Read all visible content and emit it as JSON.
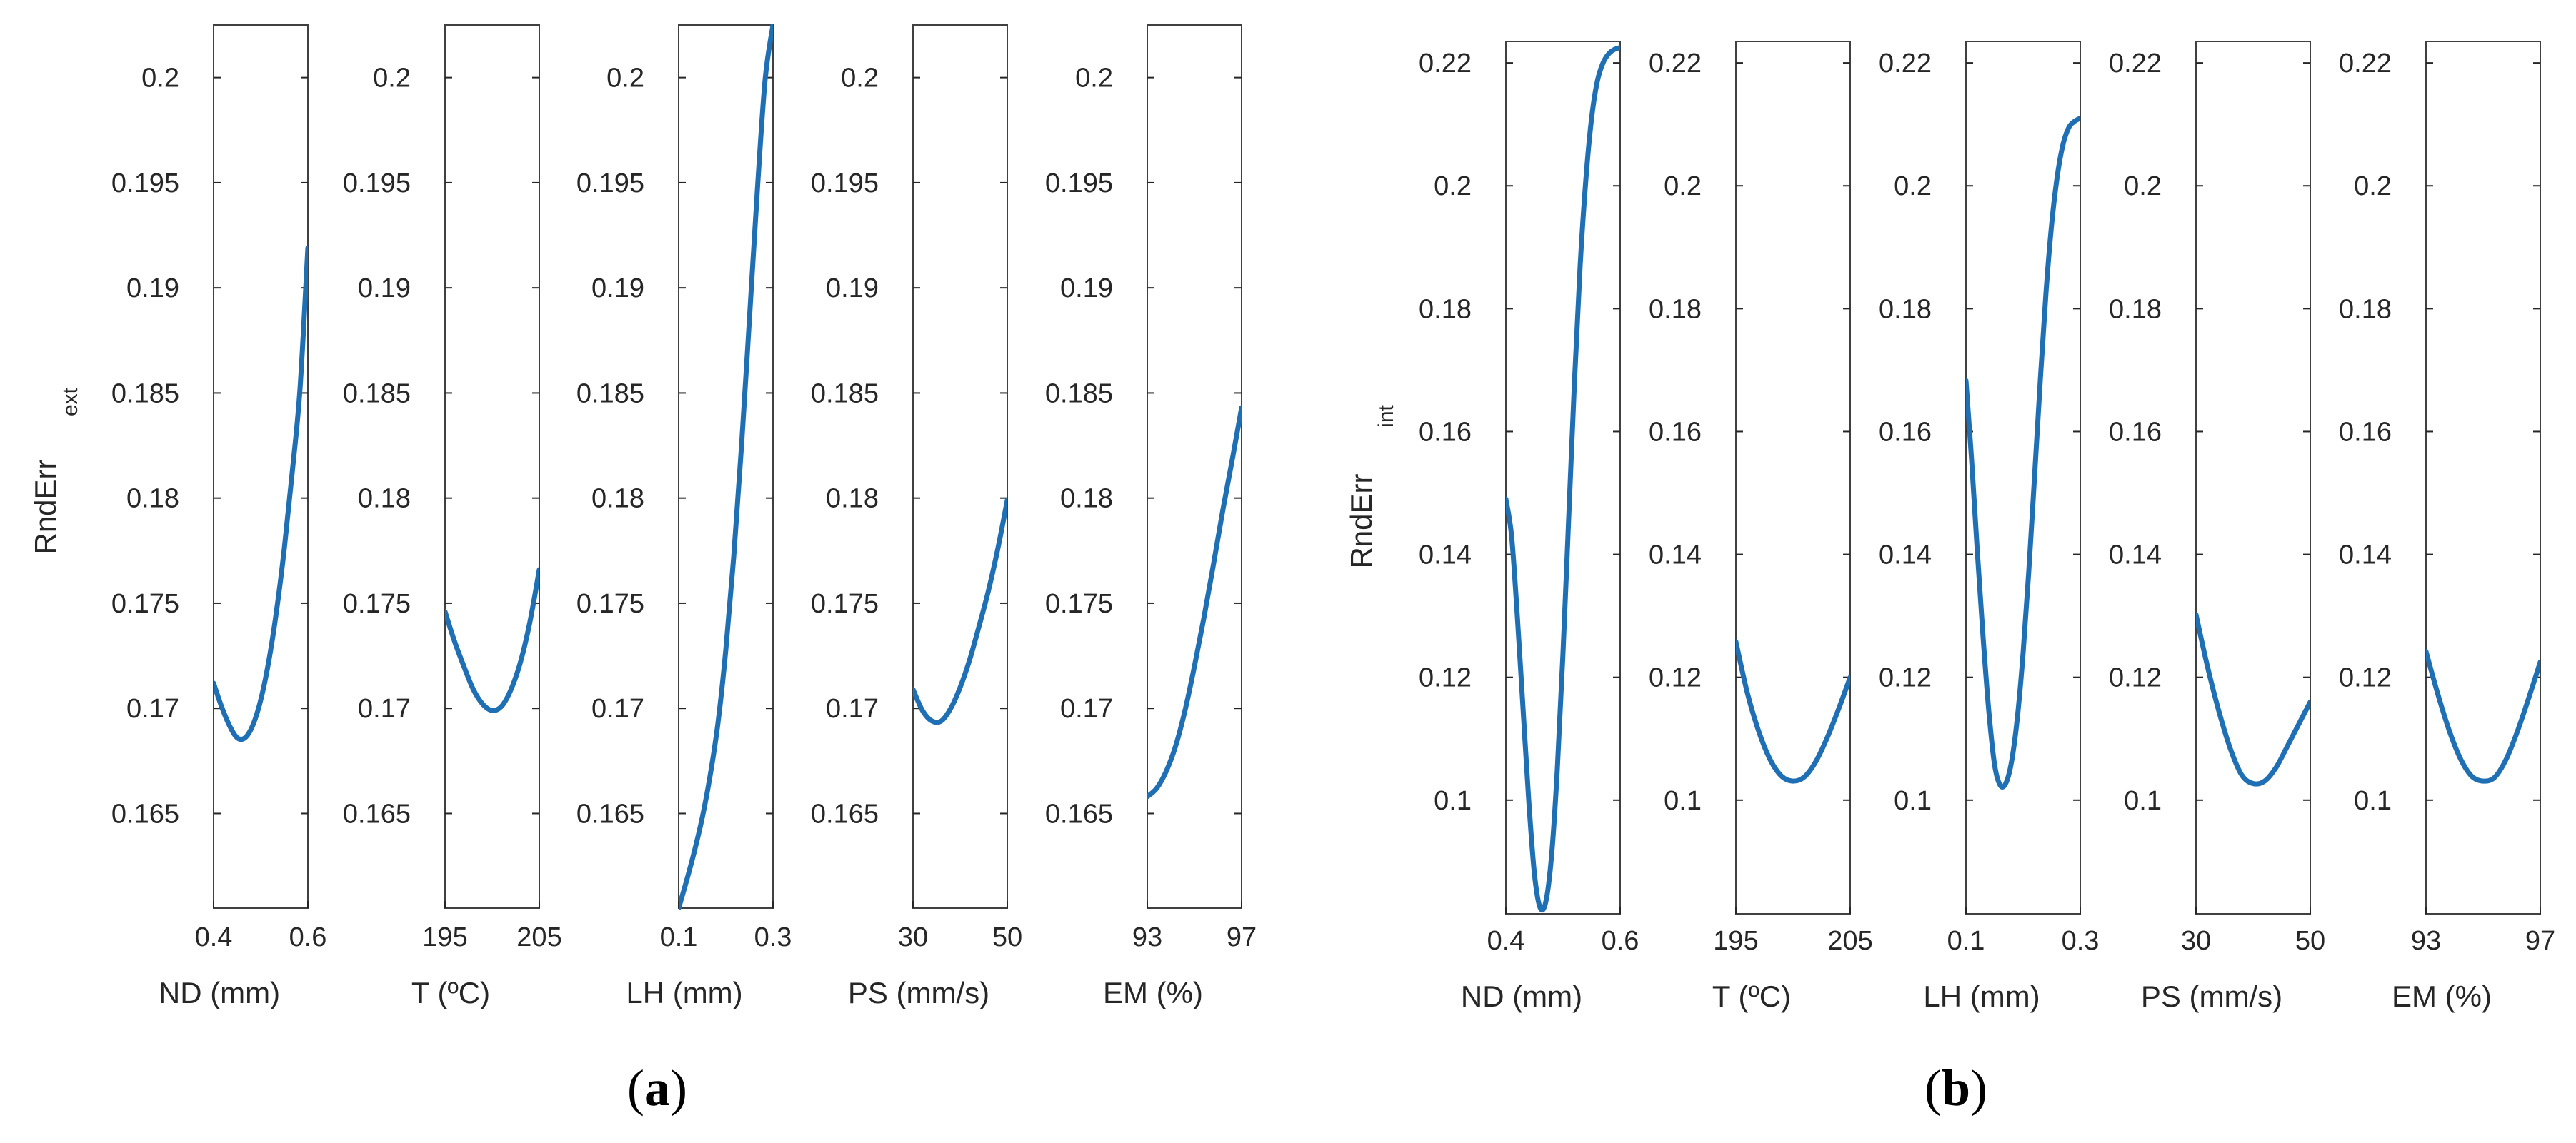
{
  "colors": {
    "line": "#1f6fb4",
    "axis": "#262626",
    "frame": "#404040"
  },
  "chart_data": [
    {
      "type": "line",
      "panel_label": "a",
      "ylabel": "RndErr",
      "ylabel_sub": "ext",
      "ylim": [
        0.1605,
        0.2025
      ],
      "yticks": [
        0.165,
        0.17,
        0.175,
        0.18,
        0.185,
        0.19,
        0.195,
        0.2
      ],
      "ytick_labels": [
        "0.165",
        "0.17",
        "0.175",
        "0.18",
        "0.185",
        "0.19",
        "0.195",
        "0.2"
      ],
      "subplots": [
        {
          "xlabel": "ND (mm)",
          "xlim": [
            0.4,
            0.6
          ],
          "xticks": [
            0.4,
            0.6
          ],
          "xtick_labels": [
            "0.4",
            "0.6"
          ],
          "series": [
            {
              "name": "ND",
              "x": [
                0.4,
                0.4167,
                0.4333,
                0.45,
                0.4667,
                0.4833,
                0.5,
                0.5167,
                0.5333,
                0.55,
                0.5667,
                0.5833,
                0.6
              ],
              "y": [
                0.1712,
                0.1701,
                0.1692,
                0.1686,
                0.1686,
                0.1692,
                0.1704,
                0.1722,
                0.1746,
                0.1776,
                0.1812,
                0.1852,
                0.1919
              ]
            }
          ]
        },
        {
          "xlabel": "T (ºC)",
          "xlim": [
            195,
            205
          ],
          "xticks": [
            195,
            205
          ],
          "xtick_labels": [
            "195",
            "205"
          ],
          "series": [
            {
              "name": "T",
              "x": [
                195,
                196,
                197,
                198,
                199,
                200,
                201,
                202,
                203,
                204,
                205
              ],
              "y": [
                0.1746,
                0.1732,
                0.172,
                0.1709,
                0.1702,
                0.1699,
                0.1701,
                0.1709,
                0.1722,
                0.1741,
                0.1766
              ]
            }
          ]
        },
        {
          "xlabel": "LH (mm)",
          "xlim": [
            0.1,
            0.3
          ],
          "xticks": [
            0.1,
            0.3
          ],
          "xtick_labels": [
            "0.1",
            "0.3"
          ],
          "series": [
            {
              "name": "LH",
              "x": [
                0.1,
                0.1167,
                0.1333,
                0.15,
                0.1667,
                0.1833,
                0.2,
                0.2167,
                0.2333,
                0.25,
                0.2667,
                0.2833,
                0.3
              ],
              "y": [
                0.1605,
                0.1618,
                0.1632,
                0.1648,
                0.1668,
                0.1693,
                0.1728,
                0.1772,
                0.1825,
                0.1885,
                0.1946,
                0.1999,
                0.2025
              ]
            }
          ]
        },
        {
          "xlabel": "PS (mm/s)",
          "xlim": [
            30,
            50
          ],
          "xticks": [
            30,
            50
          ],
          "xtick_labels": [
            "30",
            "50"
          ],
          "series": [
            {
              "name": "PS",
              "x": [
                30,
                32,
                34,
                36,
                38,
                40,
                42,
                44,
                46,
                48,
                50
              ],
              "y": [
                0.1709,
                0.1699,
                0.1694,
                0.1694,
                0.17,
                0.171,
                0.1723,
                0.1739,
                0.1756,
                0.1776,
                0.1799
              ]
            }
          ]
        },
        {
          "xlabel": "EM (%)",
          "xlim": [
            93,
            97
          ],
          "xticks": [
            93,
            97
          ],
          "xtick_labels": [
            "93",
            "97"
          ],
          "series": [
            {
              "name": "EM",
              "x": [
                93,
                93.4,
                93.8,
                94.2,
                94.6,
                95,
                95.4,
                95.8,
                96.2,
                96.6,
                97
              ],
              "y": [
                0.1658,
                0.1662,
                0.167,
                0.1682,
                0.1699,
                0.172,
                0.1743,
                0.1768,
                0.1794,
                0.1818,
                0.1843
              ]
            }
          ]
        }
      ]
    },
    {
      "type": "line",
      "panel_label": "b",
      "ylabel": "RndErr",
      "ylabel_sub": "int",
      "ylim": [
        0.0815,
        0.2235
      ],
      "yticks": [
        0.1,
        0.12,
        0.14,
        0.16,
        0.18,
        0.2,
        0.22
      ],
      "ytick_labels": [
        "0.1",
        "0.12",
        "0.14",
        "0.16",
        "0.18",
        "0.2",
        "0.22"
      ],
      "subplots": [
        {
          "xlabel": "ND (mm)",
          "xlim": [
            0.4,
            0.6
          ],
          "xticks": [
            0.4,
            0.6
          ],
          "xtick_labels": [
            "0.4",
            "0.6"
          ],
          "series": [
            {
              "name": "ND",
              "x": [
                0.4,
                0.41,
                0.42,
                0.43,
                0.44,
                0.45,
                0.46,
                0.47,
                0.48,
                0.49,
                0.5,
                0.51,
                0.52,
                0.53,
                0.54,
                0.55,
                0.56,
                0.57,
                0.58,
                0.59,
                0.6
              ],
              "y": [
                0.149,
                0.143,
                0.13,
                0.115,
                0.1,
                0.088,
                0.0825,
                0.0835,
                0.091,
                0.105,
                0.124,
                0.146,
                0.168,
                0.187,
                0.201,
                0.211,
                0.217,
                0.22,
                0.2215,
                0.2222,
                0.2225
              ]
            }
          ]
        },
        {
          "xlabel": "T (ºC)",
          "xlim": [
            195,
            205
          ],
          "xticks": [
            195,
            205
          ],
          "xtick_labels": [
            "195",
            "205"
          ],
          "series": [
            {
              "name": "T",
              "x": [
                195,
                196,
                197,
                198,
                199,
                200,
                201,
                202,
                203,
                204,
                205
              ],
              "y": [
                0.1258,
                0.1175,
                0.1112,
                0.1066,
                0.1039,
                0.1031,
                0.1038,
                0.1063,
                0.1102,
                0.1149,
                0.12
              ]
            }
          ]
        },
        {
          "xlabel": "LH (mm)",
          "xlim": [
            0.1,
            0.3
          ],
          "xticks": [
            0.1,
            0.3
          ],
          "xtick_labels": [
            "0.1",
            "0.3"
          ],
          "series": [
            {
              "name": "LH",
              "x": [
                0.1,
                0.11,
                0.12,
                0.13,
                0.14,
                0.15,
                0.16,
                0.17,
                0.18,
                0.19,
                0.2,
                0.21,
                0.22,
                0.23,
                0.24,
                0.25,
                0.26,
                0.27,
                0.28,
                0.29,
                0.3
              ],
              "y": [
                0.1683,
                0.1552,
                0.1403,
                0.1265,
                0.1145,
                0.1058,
                0.1024,
                0.1028,
                0.1064,
                0.1135,
                0.124,
                0.1374,
                0.1527,
                0.1683,
                0.1826,
                0.1938,
                0.2017,
                0.2068,
                0.2095,
                0.2105,
                0.211
              ]
            }
          ]
        },
        {
          "xlabel": "PS (mm/s)",
          "xlim": [
            30,
            50
          ],
          "xticks": [
            30,
            50
          ],
          "xtick_labels": [
            "30",
            "50"
          ],
          "series": [
            {
              "name": "PS",
              "x": [
                30,
                32,
                34,
                36,
                38,
                40,
                42,
                44,
                46,
                48,
                50
              ],
              "y": [
                0.1302,
                0.1218,
                0.1145,
                0.1084,
                0.1041,
                0.1027,
                0.1031,
                0.1053,
                0.1088,
                0.1124,
                0.116
              ]
            }
          ]
        },
        {
          "xlabel": "EM (%)",
          "xlim": [
            93,
            97
          ],
          "xticks": [
            93,
            97
          ],
          "xtick_labels": [
            "93",
            "97"
          ],
          "series": [
            {
              "name": "EM",
              "x": [
                93,
                93.4,
                93.8,
                94.2,
                94.6,
                95,
                95.4,
                95.8,
                96.2,
                96.6,
                97
              ],
              "y": [
                0.1242,
                0.1175,
                0.1115,
                0.1068,
                0.1039,
                0.1031,
                0.1037,
                0.1066,
                0.1112,
                0.1167,
                0.1225
              ]
            }
          ]
        }
      ]
    }
  ]
}
